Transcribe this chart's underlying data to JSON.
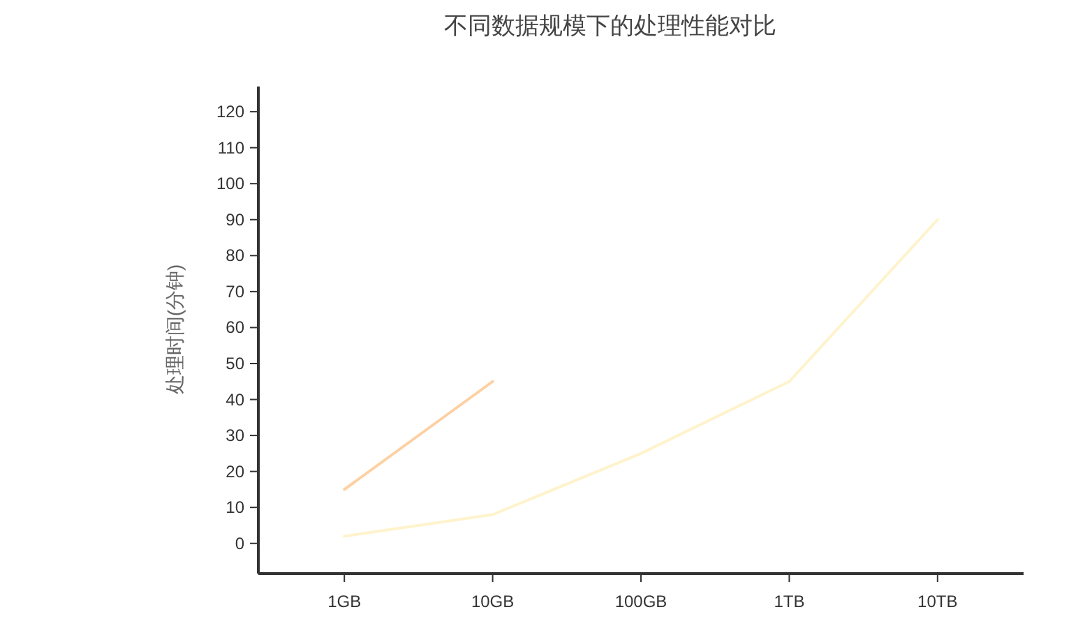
{
  "chart_data": {
    "type": "line",
    "title": "不同数据规模下的处理性能对比",
    "ylabel": "处理时间(分钟)",
    "categories": [
      "1GB",
      "10GB",
      "100GB",
      "1TB",
      "10TB"
    ],
    "series": [
      {
        "color": "#fdd0a2",
        "values": [
          15,
          45,
          null,
          null,
          null
        ]
      },
      {
        "color": "#fff3cc",
        "values": [
          2,
          8,
          25,
          45,
          90
        ]
      }
    ],
    "ylim": [
      -8,
      127
    ],
    "yticks": [
      0,
      10,
      20,
      30,
      40,
      50,
      60,
      70,
      80,
      90,
      100,
      110,
      120
    ],
    "grid": false,
    "marker": "none",
    "line_style": "solid"
  }
}
